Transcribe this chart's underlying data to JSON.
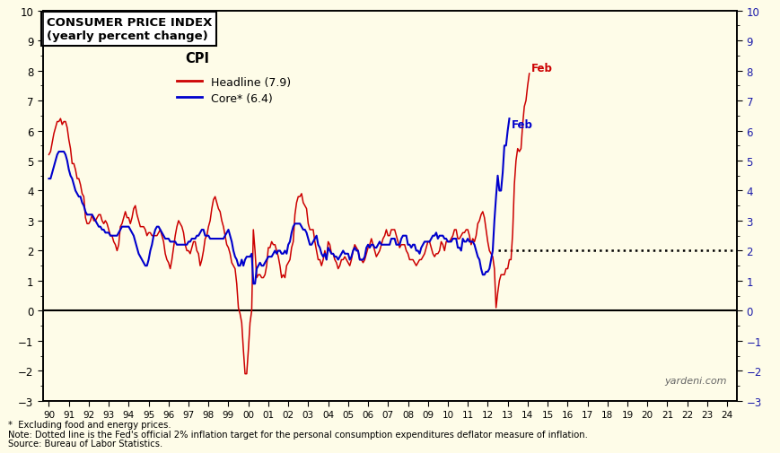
{
  "title_line1": "CONSUMER PRICE INDEX",
  "title_line2": "(yearly percent change)",
  "bg_color": "#FEFCE8",
  "headline_color": "#CC0000",
  "core_color": "#0000CC",
  "headline_label": "Headline (7.9)",
  "core_label": "Core* (6.4)",
  "legend_title": "CPI",
  "ylim": [
    -3,
    10
  ],
  "yticks": [
    -3,
    -2,
    -1,
    0,
    1,
    2,
    3,
    4,
    5,
    6,
    7,
    8,
    9,
    10
  ],
  "fed_target": 2.0,
  "watermark": "yardeni.com",
  "footnote1": "*  Excluding food and energy prices.",
  "footnote2": "Note: Dotted line is the Fed's official 2% inflation target for the personal consumption expenditures deflator measure of inflation.",
  "footnote3": "Source: Bureau of Labor Statistics.",
  "headline_cpi": [
    5.2,
    5.3,
    5.6,
    5.9,
    6.1,
    6.3,
    6.3,
    6.4,
    6.2,
    6.3,
    6.3,
    6.1,
    5.7,
    5.4,
    4.9,
    4.9,
    4.7,
    4.4,
    4.4,
    4.2,
    3.9,
    3.8,
    3.1,
    2.9,
    2.9,
    3.0,
    3.2,
    3.0,
    3.0,
    3.1,
    3.2,
    3.2,
    3.0,
    2.9,
    3.0,
    2.9,
    2.7,
    2.5,
    2.5,
    2.3,
    2.2,
    2.0,
    2.2,
    2.8,
    2.9,
    3.1,
    3.3,
    3.1,
    3.1,
    2.9,
    3.1,
    3.4,
    3.5,
    3.2,
    3.0,
    2.8,
    2.8,
    2.8,
    2.7,
    2.5,
    2.6,
    2.6,
    2.5,
    2.5,
    2.5,
    2.5,
    2.6,
    2.7,
    2.5,
    2.3,
    1.9,
    1.7,
    1.6,
    1.4,
    1.7,
    2.1,
    2.5,
    2.8,
    3.0,
    2.9,
    2.8,
    2.6,
    2.2,
    2.0,
    2.0,
    1.9,
    2.1,
    2.3,
    2.3,
    2.0,
    1.9,
    1.5,
    1.7,
    2.0,
    2.4,
    2.5,
    2.8,
    3.0,
    3.4,
    3.7,
    3.8,
    3.6,
    3.4,
    3.3,
    3.0,
    2.8,
    2.5,
    2.2,
    2.1,
    1.9,
    1.6,
    1.5,
    1.4,
    0.9,
    0.1,
    -0.1,
    -0.4,
    -1.3,
    -2.1,
    -2.1,
    -1.3,
    -0.4,
    0.0,
    2.7,
    2.0,
    1.1,
    1.2,
    1.2,
    1.1,
    1.1,
    1.2,
    1.5,
    2.1,
    2.1,
    2.3,
    2.2,
    2.2,
    2.0,
    1.8,
    1.5,
    1.1,
    1.2,
    1.1,
    1.5,
    1.6,
    1.7,
    2.1,
    2.3,
    3.2,
    3.6,
    3.8,
    3.8,
    3.9,
    3.6,
    3.5,
    3.4,
    2.9,
    2.7,
    2.7,
    2.7,
    2.3,
    2.0,
    1.7,
    1.7,
    1.5,
    1.7,
    2.0,
    1.7,
    2.3,
    2.2,
    1.9,
    1.9,
    1.7,
    1.6,
    1.4,
    1.5,
    1.7,
    1.7,
    1.8,
    1.7,
    1.6,
    1.5,
    1.7,
    2.0,
    2.2,
    2.1,
    2.0,
    1.7,
    1.7,
    1.6,
    1.7,
    1.9,
    2.1,
    2.2,
    2.4,
    2.2,
    2.0,
    1.8,
    1.9,
    2.0,
    2.2,
    2.4,
    2.5,
    2.7,
    2.5,
    2.5,
    2.7,
    2.7,
    2.7,
    2.5,
    2.3,
    2.1,
    2.2,
    2.2,
    2.2,
    2.0,
    1.9,
    1.7,
    1.7,
    1.7,
    1.6,
    1.5,
    1.6,
    1.7,
    1.7,
    1.8,
    1.9,
    2.1,
    2.3,
    2.3,
    2.1,
    1.9,
    1.8,
    1.9,
    1.9,
    2.0,
    2.3,
    2.2,
    2.0,
    2.3,
    2.3,
    2.3,
    2.4,
    2.5,
    2.7,
    2.7,
    2.4,
    2.4,
    2.5,
    2.6,
    2.6,
    2.7,
    2.7,
    2.5,
    2.2,
    2.4,
    2.3,
    2.5,
    2.9,
    3.0,
    3.2,
    3.3,
    3.1,
    2.7,
    2.3,
    2.0,
    1.9,
    1.8,
    1.4,
    0.1,
    0.6,
    1.0,
    1.2,
    1.2,
    1.2,
    1.4,
    1.4,
    1.7,
    1.7,
    2.6,
    4.2,
    5.0,
    5.4,
    5.3,
    5.4,
    6.2,
    6.8,
    7.0,
    7.5,
    7.9
  ],
  "core_cpi": [
    4.4,
    4.4,
    4.6,
    4.8,
    5.0,
    5.2,
    5.3,
    5.3,
    5.3,
    5.3,
    5.2,
    5.0,
    4.7,
    4.5,
    4.4,
    4.2,
    4.0,
    3.9,
    3.8,
    3.8,
    3.6,
    3.5,
    3.3,
    3.2,
    3.2,
    3.2,
    3.2,
    3.1,
    3.0,
    2.9,
    2.8,
    2.8,
    2.7,
    2.7,
    2.6,
    2.6,
    2.6,
    2.5,
    2.5,
    2.5,
    2.5,
    2.5,
    2.6,
    2.7,
    2.8,
    2.8,
    2.8,
    2.8,
    2.8,
    2.7,
    2.6,
    2.5,
    2.3,
    2.1,
    1.9,
    1.8,
    1.7,
    1.6,
    1.5,
    1.5,
    1.7,
    2.0,
    2.2,
    2.5,
    2.7,
    2.8,
    2.8,
    2.7,
    2.6,
    2.5,
    2.4,
    2.4,
    2.4,
    2.3,
    2.3,
    2.3,
    2.3,
    2.2,
    2.2,
    2.2,
    2.2,
    2.2,
    2.2,
    2.2,
    2.3,
    2.3,
    2.4,
    2.4,
    2.4,
    2.5,
    2.5,
    2.6,
    2.7,
    2.7,
    2.5,
    2.5,
    2.5,
    2.4,
    2.4,
    2.4,
    2.4,
    2.4,
    2.4,
    2.4,
    2.4,
    2.4,
    2.5,
    2.6,
    2.7,
    2.5,
    2.3,
    2.0,
    1.8,
    1.7,
    1.5,
    1.5,
    1.7,
    1.5,
    1.7,
    1.8,
    1.8,
    1.8,
    1.9,
    0.9,
    0.9,
    1.4,
    1.5,
    1.6,
    1.5,
    1.5,
    1.6,
    1.7,
    1.8,
    1.8,
    1.8,
    1.9,
    2.0,
    1.9,
    2.0,
    2.0,
    1.9,
    1.9,
    2.0,
    1.9,
    2.2,
    2.3,
    2.6,
    2.8,
    2.9,
    2.9,
    2.9,
    2.9,
    2.8,
    2.7,
    2.7,
    2.6,
    2.4,
    2.2,
    2.2,
    2.3,
    2.4,
    2.5,
    2.2,
    2.1,
    1.9,
    1.8,
    1.9,
    1.7,
    2.1,
    2.0,
    1.9,
    1.9,
    1.8,
    1.8,
    1.7,
    1.8,
    1.9,
    2.0,
    1.9,
    1.9,
    1.9,
    1.7,
    1.8,
    2.0,
    2.1,
    2.0,
    2.0,
    1.7,
    1.7,
    1.7,
    1.8,
    2.1,
    2.2,
    2.1,
    2.2,
    2.2,
    2.1,
    2.1,
    2.2,
    2.3,
    2.2,
    2.2,
    2.2,
    2.2,
    2.2,
    2.2,
    2.4,
    2.4,
    2.4,
    2.2,
    2.2,
    2.2,
    2.4,
    2.5,
    2.5,
    2.5,
    2.2,
    2.2,
    2.1,
    2.2,
    2.2,
    2.0,
    2.0,
    1.9,
    2.1,
    2.2,
    2.3,
    2.3,
    2.3,
    2.3,
    2.4,
    2.5,
    2.5,
    2.6,
    2.4,
    2.5,
    2.5,
    2.5,
    2.4,
    2.4,
    2.3,
    2.3,
    2.3,
    2.4,
    2.4,
    2.4,
    2.1,
    2.1,
    2.0,
    2.4,
    2.3,
    2.3,
    2.4,
    2.3,
    2.3,
    2.3,
    2.2,
    2.0,
    1.8,
    1.7,
    1.4,
    1.2,
    1.2,
    1.3,
    1.3,
    1.4,
    1.7,
    2.0,
    3.0,
    3.8,
    4.5,
    4.0,
    4.0,
    4.6,
    5.5,
    5.5,
    6.0,
    6.4
  ],
  "start_year": 1990,
  "start_month": 1
}
